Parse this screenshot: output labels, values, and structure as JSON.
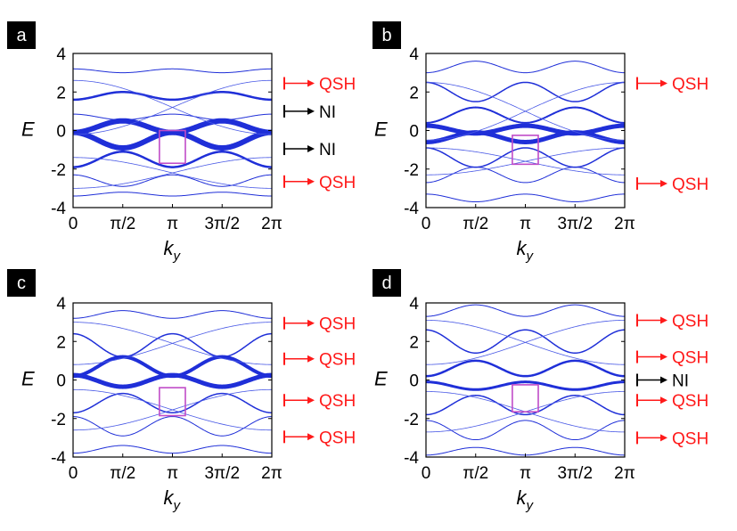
{
  "colors": {
    "band": "#1f2fd8",
    "band_fine": "#4a5ae6",
    "highlight_box": "#c04cc8",
    "qsh": "#ff1a1a",
    "ni": "#000000",
    "label_bg": "#000000"
  },
  "chart_data": [
    {
      "type": "line",
      "panel_label": "a",
      "xlabel": "k",
      "xlabel_sub": "y",
      "ylabel": "E",
      "xlim": [
        0,
        6.2832
      ],
      "ylim": [
        -4,
        4
      ],
      "x_ticks": [
        "0",
        "π/2",
        "π",
        "3π/2",
        "2π"
      ],
      "y_ticks": [
        "4",
        "2",
        "0",
        "-2",
        "-4"
      ],
      "highlight_box": {
        "x": [
          2.73,
          3.55
        ],
        "y": [
          -1.7,
          0.0
        ]
      },
      "bands": [
        {
          "center": 3.1,
          "amp": 0.1,
          "n": 2,
          "phase": 0,
          "w": 1.0
        },
        {
          "center": 1.8,
          "amp": 0.2,
          "n": 2,
          "phase": 1,
          "w": 2.5
        },
        {
          "center": 0.7,
          "amp": 0.15,
          "n": 2,
          "phase": 0,
          "w": 1.0
        },
        {
          "center": 0.2,
          "amp": 0.3,
          "n": 2,
          "phase": 1,
          "w": 6.0
        },
        {
          "center": -0.5,
          "amp": 0.4,
          "n": 2,
          "phase": 0,
          "w": 6.0
        },
        {
          "center": -1.5,
          "amp": 0.4,
          "n": 2,
          "phase": 1,
          "w": 2.5
        },
        {
          "center": -2.6,
          "amp": 0.3,
          "n": 2,
          "phase": 0,
          "w": 1.0
        },
        {
          "center": -3.3,
          "amp": 0.1,
          "n": 2,
          "phase": 1,
          "w": 1.0
        }
      ],
      "edge_states": [
        {
          "y0": 2.6,
          "y1": -0.2,
          "dir": 1
        },
        {
          "y0": -0.2,
          "y1": 2.6,
          "dir": 1
        },
        {
          "y0": -1.4,
          "y1": -3.0,
          "dir": 1
        },
        {
          "y0": -3.0,
          "y1": -1.4,
          "dir": 1
        }
      ],
      "annotations": [
        {
          "text": "QSH",
          "kind": "qsh",
          "E": 2.45
        },
        {
          "text": "NI",
          "kind": "ni",
          "E": 1.0
        },
        {
          "text": "NI",
          "kind": "ni",
          "E": -0.95
        },
        {
          "text": "QSH",
          "kind": "qsh",
          "E": -2.65
        }
      ]
    },
    {
      "type": "line",
      "panel_label": "b",
      "xlabel": "k",
      "xlabel_sub": "y",
      "ylabel": "E",
      "xlim": [
        0,
        6.2832
      ],
      "ylim": [
        -4,
        4
      ],
      "x_ticks": [
        "0",
        "π/2",
        "π",
        "3π/2",
        "2π"
      ],
      "y_ticks": [
        "4",
        "2",
        "0",
        "-2",
        "-4"
      ],
      "highlight_box": {
        "x": [
          2.73,
          3.55
        ],
        "y": [
          -1.75,
          -0.25
        ]
      },
      "bands": [
        {
          "center": 3.3,
          "amp": 0.3,
          "n": 2,
          "phase": 1,
          "w": 1.0
        },
        {
          "center": 2.0,
          "amp": 0.5,
          "n": 2,
          "phase": 0,
          "w": 1.5
        },
        {
          "center": 0.8,
          "amp": 0.4,
          "n": 2,
          "phase": 1,
          "w": 2.0
        },
        {
          "center": 0.05,
          "amp": 0.2,
          "n": 2,
          "phase": 0,
          "w": 5.0
        },
        {
          "center": -0.35,
          "amp": 0.25,
          "n": 2,
          "phase": 1,
          "w": 5.0
        },
        {
          "center": -1.4,
          "amp": 0.5,
          "n": 2,
          "phase": 0,
          "w": 1.5
        },
        {
          "center": -2.3,
          "amp": 0.4,
          "n": 2,
          "phase": 1,
          "w": 1.0
        },
        {
          "center": -3.5,
          "amp": 0.2,
          "n": 2,
          "phase": 0,
          "w": 1.0
        }
      ],
      "edge_states": [
        {
          "y0": 2.5,
          "y1": -0.5,
          "dir": 1
        },
        {
          "y0": -0.5,
          "y1": 2.5,
          "dir": 1
        },
        {
          "y0": -0.9,
          "y1": -2.3,
          "dir": 1
        },
        {
          "y0": -2.3,
          "y1": -0.9,
          "dir": 1
        }
      ],
      "annotations": [
        {
          "text": "QSH",
          "kind": "qsh",
          "E": 2.45
        },
        {
          "text": "QSH",
          "kind": "qsh",
          "E": -2.75
        }
      ]
    },
    {
      "type": "line",
      "panel_label": "c",
      "xlabel": "k",
      "xlabel_sub": "y",
      "ylabel": "E",
      "xlim": [
        0,
        6.2832
      ],
      "ylim": [
        -4,
        4
      ],
      "x_ticks": [
        "0",
        "π/2",
        "π",
        "3π/2",
        "2π"
      ],
      "y_ticks": [
        "4",
        "2",
        "0",
        "-2",
        "-4"
      ],
      "highlight_box": {
        "x": [
          2.73,
          3.55
        ],
        "y": [
          -1.85,
          -0.4
        ]
      },
      "bands": [
        {
          "center": 3.4,
          "amp": 0.2,
          "n": 2,
          "phase": 1,
          "w": 1.0
        },
        {
          "center": 1.8,
          "amp": 0.6,
          "n": 2,
          "phase": 0,
          "w": 1.5
        },
        {
          "center": 0.7,
          "amp": 0.5,
          "n": 2,
          "phase": 1,
          "w": 4.0
        },
        {
          "center": -0.05,
          "amp": 0.3,
          "n": 2,
          "phase": 0,
          "w": 5.0
        },
        {
          "center": -1.2,
          "amp": 0.5,
          "n": 2,
          "phase": 1,
          "w": 1.5
        },
        {
          "center": -2.4,
          "amp": 0.5,
          "n": 2,
          "phase": 0,
          "w": 1.0
        },
        {
          "center": -3.6,
          "amp": 0.2,
          "n": 2,
          "phase": 1,
          "w": 1.0
        }
      ],
      "edge_states": [
        {
          "y0": 3.0,
          "y1": 0.8,
          "dir": 1
        },
        {
          "y0": 0.8,
          "y1": 3.0,
          "dir": 1
        },
        {
          "y0": -0.5,
          "y1": -2.6,
          "dir": 1
        },
        {
          "y0": -2.6,
          "y1": -0.5,
          "dir": 1
        }
      ],
      "annotations": [
        {
          "text": "QSH",
          "kind": "qsh",
          "E": 2.95
        },
        {
          "text": "QSH",
          "kind": "qsh",
          "E": 1.1
        },
        {
          "text": "QSH",
          "kind": "qsh",
          "E": -1.05
        },
        {
          "text": "QSH",
          "kind": "qsh",
          "E": -2.95
        }
      ]
    },
    {
      "type": "line",
      "panel_label": "d",
      "xlabel": "k",
      "xlabel_sub": "y",
      "ylabel": "E",
      "xlim": [
        0,
        6.2832
      ],
      "ylim": [
        -4,
        4
      ],
      "x_ticks": [
        "0",
        "π/2",
        "π",
        "3π/2",
        "2π"
      ],
      "y_ticks": [
        "4",
        "2",
        "0",
        "-2",
        "-4"
      ],
      "highlight_box": {
        "x": [
          2.73,
          3.55
        ],
        "y": [
          -1.65,
          -0.25
        ]
      },
      "bands": [
        {
          "center": 3.6,
          "amp": 0.3,
          "n": 2,
          "phase": 1,
          "w": 1.0
        },
        {
          "center": 2.0,
          "amp": 0.6,
          "n": 2,
          "phase": 0,
          "w": 1.5
        },
        {
          "center": 0.6,
          "amp": 0.4,
          "n": 2,
          "phase": 1,
          "w": 2.5
        },
        {
          "center": -0.3,
          "amp": 0.2,
          "n": 2,
          "phase": 0,
          "w": 3.0
        },
        {
          "center": -1.3,
          "amp": 0.5,
          "n": 2,
          "phase": 1,
          "w": 1.5
        },
        {
          "center": -2.6,
          "amp": 0.5,
          "n": 2,
          "phase": 0,
          "w": 1.0
        },
        {
          "center": -3.7,
          "amp": 0.2,
          "n": 2,
          "phase": 1,
          "w": 1.0
        }
      ],
      "edge_states": [
        {
          "y0": 3.1,
          "y1": 0.8,
          "dir": 1
        },
        {
          "y0": 0.8,
          "y1": 3.1,
          "dir": 1
        },
        {
          "y0": -0.6,
          "y1": -2.7,
          "dir": 1
        },
        {
          "y0": -2.7,
          "y1": -0.6,
          "dir": 1
        }
      ],
      "annotations": [
        {
          "text": "QSH",
          "kind": "qsh",
          "E": 3.1
        },
        {
          "text": "QSH",
          "kind": "qsh",
          "E": 1.2
        },
        {
          "text": "NI",
          "kind": "ni",
          "E": 0.0
        },
        {
          "text": "QSH",
          "kind": "qsh",
          "E": -1.05
        },
        {
          "text": "QSH",
          "kind": "qsh",
          "E": -3.0
        }
      ]
    }
  ]
}
